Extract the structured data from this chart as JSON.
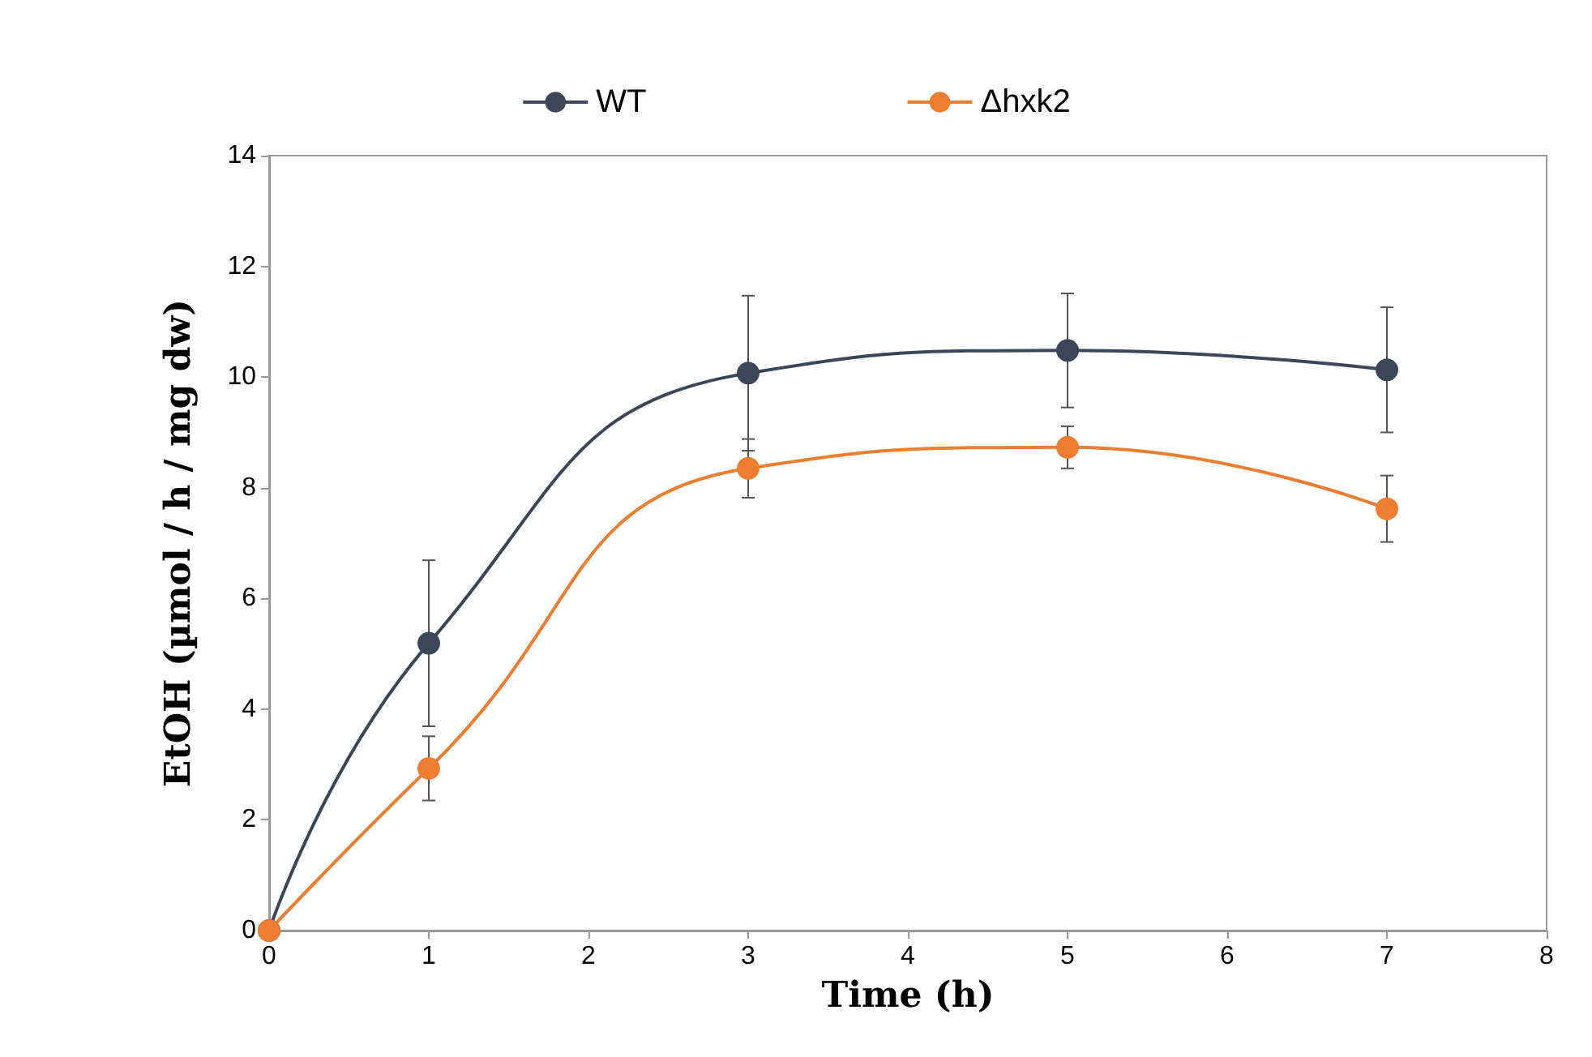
{
  "chart_data": {
    "type": "line",
    "xlabel": "Time (h)",
    "ylabel": "EtOH (µmol / h / mg dw)",
    "x": [
      0,
      1,
      3,
      5,
      7
    ],
    "series": [
      {
        "name": "WT",
        "color": "#3b4659",
        "values": [
          0,
          5.19,
          10.07,
          10.48,
          10.13
        ],
        "errors": [
          null,
          1.5,
          1.4,
          1.03,
          1.13
        ]
      },
      {
        "name": "Δhxk2",
        "color": "#ed7d31",
        "values": [
          0,
          2.93,
          8.35,
          8.73,
          7.62
        ],
        "errors": [
          null,
          0.58,
          0.53,
          0.38,
          0.6
        ]
      }
    ],
    "xlim": [
      0,
      8
    ],
    "xticks": [
      0,
      1,
      2,
      3,
      4,
      5,
      6,
      7,
      8
    ],
    "ylim": [
      0,
      14
    ],
    "yticks": [
      0,
      2,
      4,
      6,
      8,
      10,
      12,
      14
    ],
    "grid": false,
    "legend": "top",
    "marker": "circle",
    "line_style": "solid"
  }
}
